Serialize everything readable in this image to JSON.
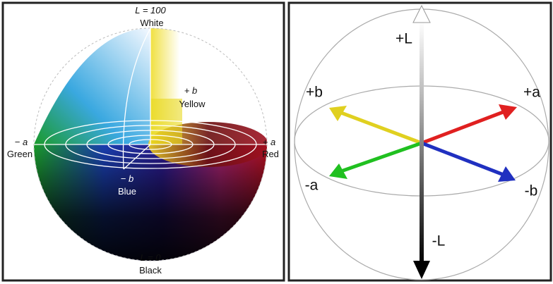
{
  "left_panel": {
    "top_value": "L = 100",
    "top_name": "White",
    "plus_b_symbol": "+ b",
    "plus_b_name": "Yellow",
    "minus_a_symbol": "− a",
    "minus_a_name": "Green",
    "plus_a_symbol": "+ a",
    "plus_a_name": "Red",
    "minus_b_symbol": "− b",
    "minus_b_name": "Blue",
    "bottom_value": "L = 0",
    "bottom_name": "Black"
  },
  "right_panel": {
    "plus_l": "+L",
    "plus_b": "+b",
    "plus_a": "+a",
    "minus_a": "-a",
    "minus_b": "-b",
    "minus_l": "-L"
  }
}
